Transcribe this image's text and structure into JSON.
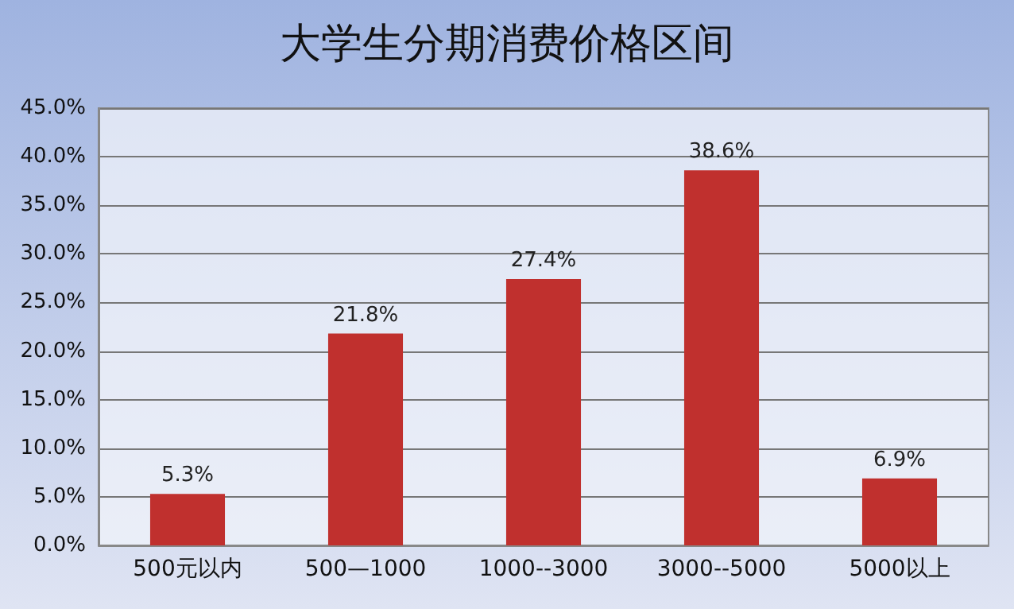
{
  "chart_data": {
    "type": "bar",
    "title": "大学生分期消费价格区间",
    "categories": [
      "500元以内",
      "500—1000",
      "1000--3000",
      "3000--5000",
      "5000以上"
    ],
    "values": [
      5.3,
      21.8,
      27.4,
      38.6,
      6.9
    ],
    "value_labels": [
      "5.3%",
      "21.8%",
      "27.4%",
      "38.6%",
      "6.9%"
    ],
    "color": "#c0302e",
    "ylim": [
      0,
      45
    ],
    "yticks": [
      {
        "value": 0,
        "label": "0.0%"
      },
      {
        "value": 5,
        "label": "5.0%"
      },
      {
        "value": 10,
        "label": "10.0%"
      },
      {
        "value": 15,
        "label": "15.0%"
      },
      {
        "value": 20,
        "label": "20.0%"
      },
      {
        "value": 25,
        "label": "25.0%"
      },
      {
        "value": 30,
        "label": "30.0%"
      },
      {
        "value": 35,
        "label": "35.0%"
      },
      {
        "value": 40,
        "label": "40.0%"
      },
      {
        "value": 45,
        "label": "45.0%"
      }
    ],
    "grid": "y"
  }
}
